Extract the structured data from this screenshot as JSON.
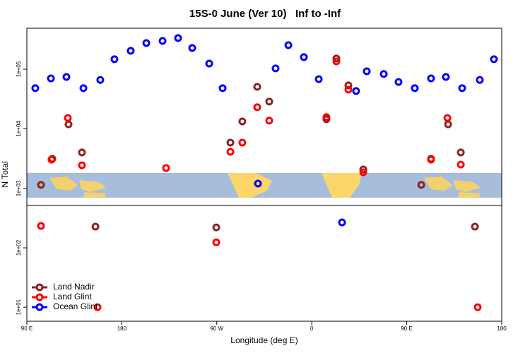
{
  "chart_data": [
    {
      "type": "scatter",
      "title": "15S-0 June (Ver 10)   Inf to -Inf",
      "ylabel": "N Total",
      "xlim": [
        90,
        540
      ],
      "ylim": [
        520,
        485000
      ],
      "log_y": true,
      "yticks": [
        {
          "value": 1000,
          "label": "1e+03"
        },
        {
          "value": 10000,
          "label": "1e+04"
        },
        {
          "value": 100000,
          "label": "1e+05"
        }
      ],
      "series": [
        {
          "color": "#8b2323",
          "x": [
            103.4,
            114.1,
            129.5,
            142.2,
            282.9,
            294.2,
            308.3,
            319.7,
            373.9,
            383.3,
            394.7,
            408.8,
            463.8,
            473,
            489.2,
            501.2
          ],
          "y": [
            1150,
            3140,
            11900,
            4020,
            5870,
            13300,
            50600,
            28600,
            14500,
            151000,
            53500,
            2090,
            1150,
            3140,
            11900,
            4020
          ]
        },
        {
          "color": "#ff0000",
          "x": [
            113.4,
            128.8,
            142.2,
            221.9,
            282.9,
            294.2,
            308.3,
            319.7,
            373.9,
            383.3,
            394.7,
            408.8,
            473,
            488.5,
            501.2
          ],
          "y": [
            3050,
            15200,
            2450,
            2200,
            4120,
            5870,
            23000,
            13700,
            15700,
            135000,
            45400,
            1870,
            3050,
            15200,
            2520
          ]
        },
        {
          "color": "#0000ff",
          "x": [
            98,
            112.8,
            127.5,
            143.6,
            159.6,
            173,
            188.4,
            203.2,
            218.6,
            233.3,
            246.7,
            262.8,
            275.5,
            309,
            325.7,
            337.8,
            352.5,
            366.6,
            402,
            412.1,
            428.2,
            442.2,
            457.6,
            473,
            487.1,
            502.5,
            519.2,
            532.6
          ],
          "y": [
            48000,
            70000,
            74000,
            48000,
            66000,
            147000,
            203000,
            274000,
            297000,
            332000,
            226000,
            124000,
            48000,
            1210,
            103000,
            252000,
            159000,
            68000,
            43000,
            92000,
            83000,
            61000,
            48000,
            70000,
            74000,
            48000,
            66000,
            147000
          ]
        }
      ]
    },
    {
      "type": "scatter",
      "xlabel": "Longitude (deg E)",
      "xlim": [
        90,
        540
      ],
      "ylim": [
        5.8,
        518
      ],
      "log_y": true,
      "legend": "lower left",
      "xticks": [
        {
          "value": 90,
          "label": "90 E"
        },
        {
          "value": 180,
          "label": "180"
        },
        {
          "value": 270,
          "label": "90 W"
        },
        {
          "value": 360,
          "label": "0"
        },
        {
          "value": 450,
          "label": "90 E"
        },
        {
          "value": 540,
          "label": "180"
        }
      ],
      "yticks": [
        {
          "value": 10,
          "label": "1e+01"
        },
        {
          "value": 100,
          "label": "1e+02"
        }
      ],
      "series": [
        {
          "name": "Land Nadir",
          "color": "#8b2323",
          "x": [
            155,
            269.5,
            514.6
          ],
          "y": [
            228,
            221,
            228
          ]
        },
        {
          "name": "Land Glint",
          "color": "#ff0000",
          "x": [
            103.4,
            157,
            269.5,
            517.2
          ],
          "y": [
            234,
            10,
            124,
            10
          ]
        },
        {
          "name": "Ocean Glint",
          "color": "#0000ff",
          "x": [
            388.7
          ],
          "y": [
            268
          ]
        }
      ]
    }
  ]
}
